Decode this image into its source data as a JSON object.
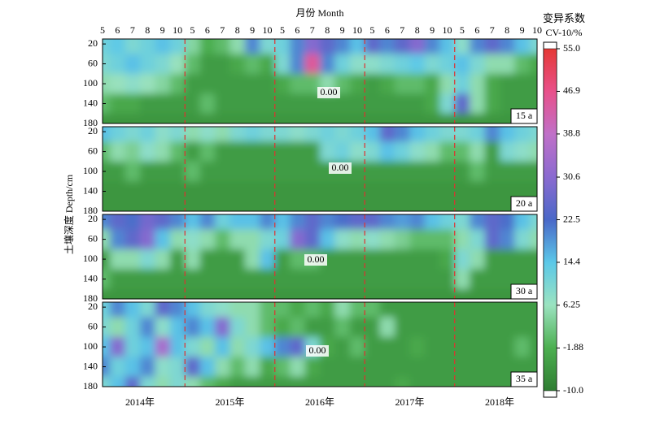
{
  "chart_data": {
    "type": "heatmap",
    "title": "月份 Month",
    "y_label": "土壤深度 Depth/cm",
    "colorbar_title": "变异系数",
    "colorbar_unit": "CV-10/%",
    "categories": [
      "5",
      "6",
      "7",
      "8",
      "9",
      "10",
      "5",
      "6",
      "7",
      "8",
      "9",
      "10",
      "5",
      "6",
      "7",
      "8",
      "9",
      "10",
      "5",
      "6",
      "7",
      "8",
      "9",
      "10",
      "5",
      "6",
      "7",
      "8",
      "9",
      "10"
    ],
    "years": [
      "2014年",
      "2015年",
      "2016年",
      "2017年",
      "2018年"
    ],
    "depths": [
      20,
      60,
      100,
      140,
      180
    ],
    "ylim": [
      10,
      180
    ],
    "yticks": [
      20,
      60,
      100,
      140,
      180
    ],
    "colorbar_lim": [
      -10,
      55
    ],
    "colorbar_ticks": [
      {
        "value": 55,
        "label": "55.0"
      },
      46.9,
      38.8,
      30.6,
      22.5,
      14.4,
      6.25,
      -1.88,
      {
        "value": -10,
        "label": "-10.0"
      }
    ],
    "colorbar_colors": [
      "#e53935",
      "#e8508a",
      "#c070c8",
      "#8a6ad0",
      "#4a68c8",
      "#5bc8e8",
      "#9be3c0",
      "#4caf50",
      "#2f7d32"
    ],
    "panels": [
      {
        "label": "15 a",
        "contour_label": "0.00",
        "z": [
          [
            12,
            14,
            10,
            12,
            15,
            12,
            4,
            -2,
            0,
            5,
            20,
            10,
            12,
            20,
            30,
            25,
            20,
            15,
            25,
            20,
            25,
            30,
            20,
            15,
            8,
            20,
            25,
            20,
            15,
            10
          ],
          [
            10,
            12,
            15,
            12,
            10,
            6,
            0,
            -5,
            -5,
            -3,
            0,
            -3,
            10,
            20,
            45,
            20,
            12,
            8,
            8,
            10,
            12,
            14,
            10,
            12,
            15,
            10,
            5,
            5,
            0,
            -3
          ],
          [
            5,
            6,
            8,
            6,
            4,
            0,
            -5,
            -5,
            -5,
            -5,
            -5,
            -5,
            -3,
            0,
            0,
            5,
            0,
            -3,
            -5,
            -3,
            0,
            0,
            -3,
            5,
            12,
            5,
            -3,
            -5,
            -5,
            -5
          ],
          [
            0,
            -3,
            -3,
            -5,
            -5,
            -5,
            -5,
            0,
            -5,
            -5,
            -5,
            -5,
            -5,
            -5,
            -5,
            -5,
            -5,
            -5,
            -5,
            -5,
            -5,
            -5,
            -3,
            10,
            25,
            5,
            -3,
            -5,
            -5,
            -5
          ],
          [
            -6,
            -6,
            -6,
            -6,
            -6,
            -6,
            -6,
            -6,
            -6,
            -6,
            -6,
            -6,
            -6,
            -6,
            -6,
            -6,
            -6,
            -6,
            -6,
            -6,
            -6,
            -6,
            -6,
            -6,
            -6,
            -6,
            -6,
            -6,
            -6,
            -6
          ]
        ]
      },
      {
        "label": "20 a",
        "contour_label": "0.00",
        "z": [
          [
            15,
            12,
            10,
            12,
            8,
            10,
            5,
            8,
            5,
            10,
            12,
            10,
            10,
            8,
            10,
            12,
            10,
            12,
            15,
            25,
            20,
            15,
            12,
            10,
            10,
            12,
            20,
            15,
            12,
            10
          ],
          [
            0,
            5,
            3,
            8,
            5,
            0,
            -5,
            0,
            -5,
            -5,
            -5,
            -5,
            -5,
            -5,
            -5,
            10,
            12,
            8,
            10,
            15,
            12,
            8,
            5,
            0,
            0,
            5,
            -5,
            10,
            8,
            5
          ],
          [
            -5,
            -5,
            0,
            -5,
            -5,
            -5,
            0,
            -5,
            -5,
            -5,
            -5,
            -5,
            -5,
            -5,
            -5,
            -5,
            -5,
            -5,
            -5,
            -5,
            -5,
            -5,
            -5,
            -5,
            -5,
            0,
            -5,
            -5,
            -5,
            -5
          ],
          [
            -6,
            -6,
            -6,
            -6,
            -6,
            -6,
            -6,
            -6,
            -6,
            -6,
            -6,
            -6,
            -6,
            -6,
            -6,
            -6,
            -6,
            -6,
            -6,
            -6,
            -6,
            -6,
            -6,
            -6,
            -6,
            -6,
            -6,
            -6,
            -6,
            -6
          ],
          [
            -6,
            -6,
            -6,
            -6,
            -6,
            -6,
            -6,
            -6,
            -6,
            -6,
            -6,
            -6,
            -6,
            -6,
            -6,
            -6,
            -6,
            -6,
            -6,
            -6,
            -6,
            -6,
            -6,
            -6,
            -6,
            -6,
            -6,
            -6,
            -6,
            -6
          ]
        ]
      },
      {
        "label": "30 a",
        "contour_label": "0.00",
        "z": [
          [
            20,
            25,
            22,
            28,
            25,
            20,
            15,
            20,
            12,
            15,
            15,
            20,
            15,
            20,
            25,
            20,
            22,
            25,
            25,
            20,
            18,
            20,
            15,
            12,
            10,
            20,
            25,
            22,
            15,
            10
          ],
          [
            5,
            20,
            25,
            30,
            15,
            5,
            8,
            5,
            0,
            5,
            5,
            10,
            12,
            30,
            25,
            15,
            8,
            5,
            8,
            5,
            3,
            0,
            0,
            0,
            5,
            10,
            25,
            20,
            10,
            5
          ],
          [
            -5,
            5,
            5,
            10,
            5,
            -5,
            5,
            -5,
            -5,
            -5,
            5,
            15,
            -5,
            0,
            0,
            -5,
            -5,
            -5,
            -5,
            -5,
            -5,
            -5,
            -5,
            -3,
            10,
            5,
            -5,
            -5,
            -5,
            -5
          ],
          [
            0,
            -5,
            -5,
            -5,
            -5,
            -5,
            -5,
            -5,
            -5,
            -5,
            -5,
            -5,
            -5,
            -5,
            -5,
            -5,
            -5,
            -5,
            -5,
            -5,
            -5,
            -5,
            -5,
            -5,
            5,
            -5,
            -5,
            -5,
            -5,
            -5
          ],
          [
            -6,
            -6,
            -6,
            -6,
            -6,
            -6,
            -6,
            -6,
            -6,
            -6,
            -6,
            -6,
            -6,
            -6,
            -6,
            -6,
            -6,
            -6,
            -6,
            -6,
            -6,
            -6,
            -6,
            -6,
            -6,
            -6,
            -6,
            -6,
            -6,
            -6
          ]
        ]
      },
      {
        "label": "35 a",
        "contour_label": "0.00",
        "z": [
          [
            12,
            20,
            15,
            10,
            25,
            20,
            15,
            10,
            8,
            5,
            5,
            0,
            0,
            -3,
            0,
            -3,
            5,
            0,
            0,
            -5,
            -5,
            -5,
            -5,
            -5,
            -5,
            -5,
            -5,
            -5,
            -5,
            -5
          ],
          [
            10,
            5,
            12,
            20,
            8,
            15,
            20,
            15,
            30,
            10,
            5,
            0,
            -3,
            0,
            -5,
            -5,
            0,
            -5,
            -5,
            5,
            -5,
            -5,
            -5,
            -5,
            -5,
            -5,
            -5,
            -5,
            -5,
            -5
          ],
          [
            15,
            30,
            12,
            15,
            35,
            15,
            10,
            5,
            15,
            5,
            10,
            15,
            20,
            25,
            10,
            -3,
            -5,
            0,
            -5,
            -5,
            -5,
            -3,
            -5,
            -5,
            -5,
            -5,
            -5,
            -5,
            0,
            -5
          ],
          [
            20,
            12,
            15,
            20,
            8,
            10,
            25,
            15,
            5,
            0,
            5,
            -3,
            0,
            5,
            -3,
            -5,
            -5,
            -5,
            -5,
            -5,
            -5,
            -5,
            -5,
            -5,
            -5,
            -5,
            -5,
            -5,
            -5,
            -5
          ],
          [
            10,
            15,
            25,
            10,
            5,
            10,
            5,
            0,
            -3,
            -5,
            -5,
            -5,
            -5,
            -5,
            -5,
            -5,
            -5,
            -5,
            -5,
            -5,
            -3,
            -5,
            -5,
            -5,
            -5,
            -5,
            -5,
            -5,
            -5,
            -5
          ]
        ]
      }
    ]
  }
}
